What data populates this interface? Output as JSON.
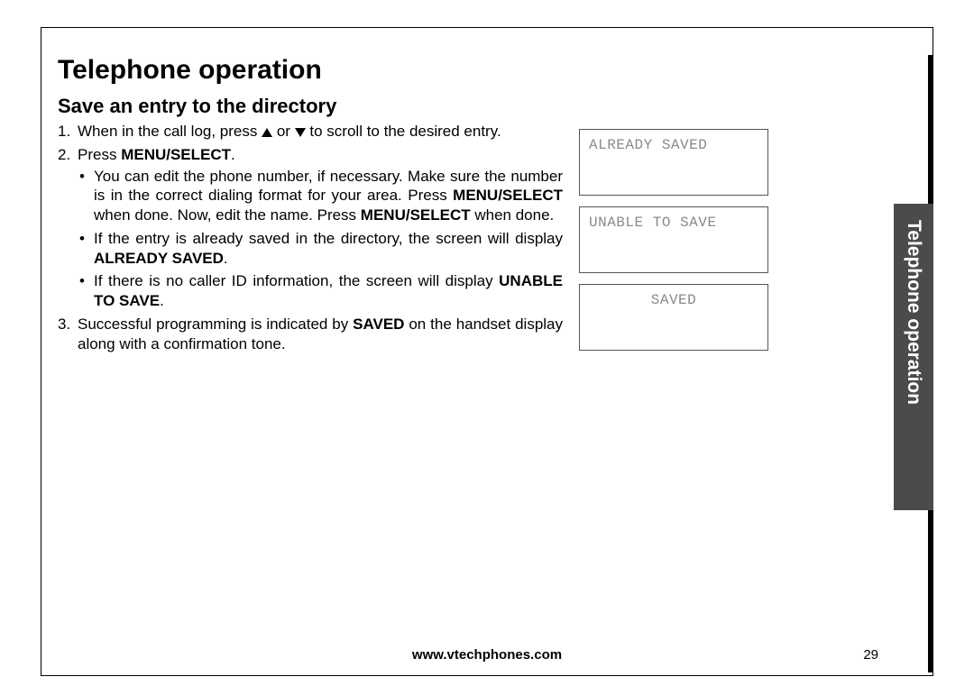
{
  "heading": "Telephone operation",
  "subheading": "Save an entry to the directory",
  "side_tab_label": "Telephone operation",
  "footer_url": "www.vtechphones.com",
  "page_number": "29",
  "steps": {
    "s1_a": "When in the call log, press ",
    "s1_b": " or ",
    "s1_c": " to scroll to the desired entry.",
    "s2_a": "Press ",
    "s2_menu": "MENU/SELECT",
    "s2_b": ".",
    "b1_a": "You can edit the phone number, if necessary. Make sure the number is in the correct dialing format for your area. Press ",
    "b1_menu1": "MENU/SELECT",
    "b1_b": " when done. Now, edit the name. Press ",
    "b1_menu2": "MENU/SELECT",
    "b1_c": " when done.",
    "b2_a": "If the entry is already saved in the directory, the screen will display ",
    "b2_bold": "ALREADY SAVED",
    "b2_b": ".",
    "b3_a": "If there is no caller ID information, the screen will display ",
    "b3_bold": "UNABLE TO SAVE",
    "b3_b": ".",
    "s3_a": "Successful programming is indicated by ",
    "s3_bold": "SAVED",
    "s3_b": " on the handset display along with a confirmation tone."
  },
  "lcd": {
    "screen1": "ALREADY SAVED",
    "screen2": "UNABLE TO SAVE",
    "screen3": "SAVED"
  }
}
